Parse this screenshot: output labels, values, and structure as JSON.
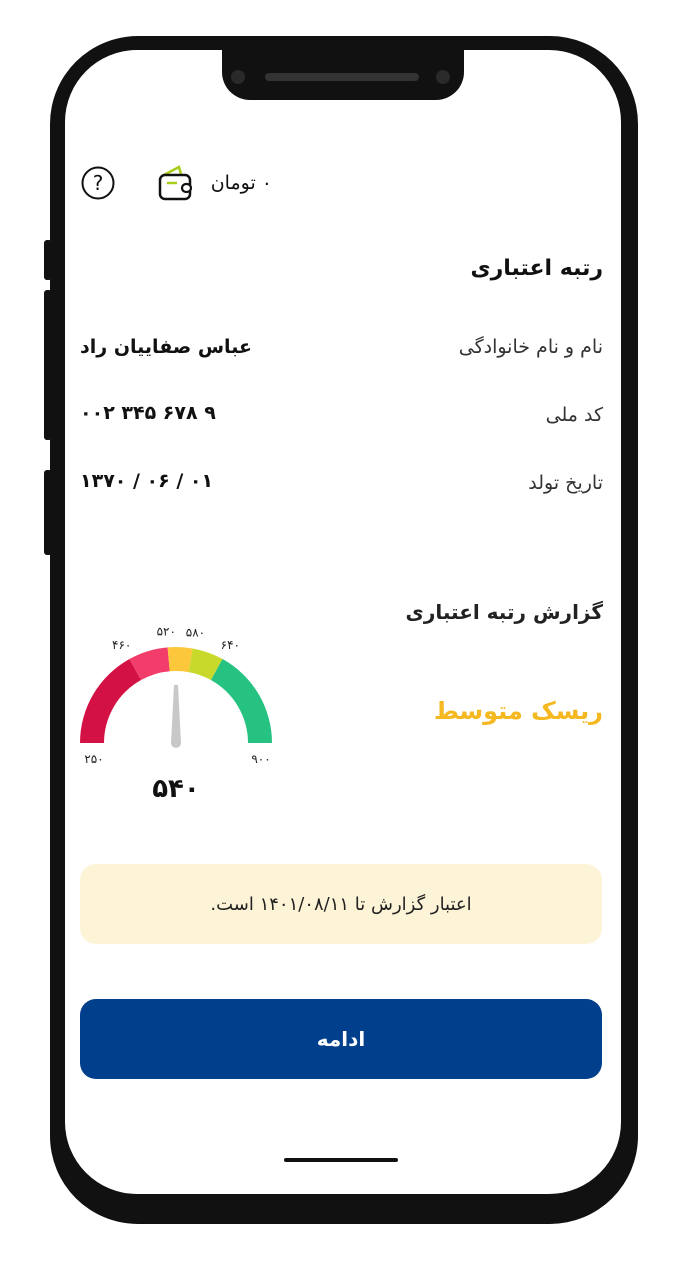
{
  "header": {
    "balance": "۰ تومان",
    "wallet_icon": "wallet-icon",
    "help_icon": "help-icon"
  },
  "profile": {
    "title": "رتبه اعتباری",
    "fields": [
      {
        "label": "نام و نام خانوادگی",
        "value": "عباس صفاییان راد"
      },
      {
        "label": "کد ملی",
        "value": "۰۰۲ ۳۴۵ ۶۷۸ ۹"
      },
      {
        "label": "تاریخ تولد",
        "value": "۱۳۷۰ / ۰۶ / ۰۱"
      }
    ]
  },
  "report": {
    "title": "گزارش رتبه اعتباری",
    "risk_label": "ریسک متوسط",
    "risk_color": "#f5b820",
    "score": "۵۴۰",
    "score_value": 540,
    "gauge": {
      "min_label": "۲۵۰",
      "max_label": "۹۰۰",
      "ticks": [
        "۴۶۰",
        "۵۲۰",
        "۵۸۰",
        "۶۴۰"
      ],
      "segments": [
        {
          "from": 250,
          "to": 460,
          "color": "#d31145"
        },
        {
          "from": 460,
          "to": 520,
          "color": "#f23d6a"
        },
        {
          "from": 520,
          "to": 580,
          "color": "#fcc73a"
        },
        {
          "from": 580,
          "to": 640,
          "color": "#c8d92c"
        },
        {
          "from": 640,
          "to": 900,
          "color": "#25c282"
        }
      ]
    }
  },
  "notice": "اعتبار گزارش تا ۱۴۰۱/۰۸/۱۱ است.",
  "continue_label": "ادامه"
}
